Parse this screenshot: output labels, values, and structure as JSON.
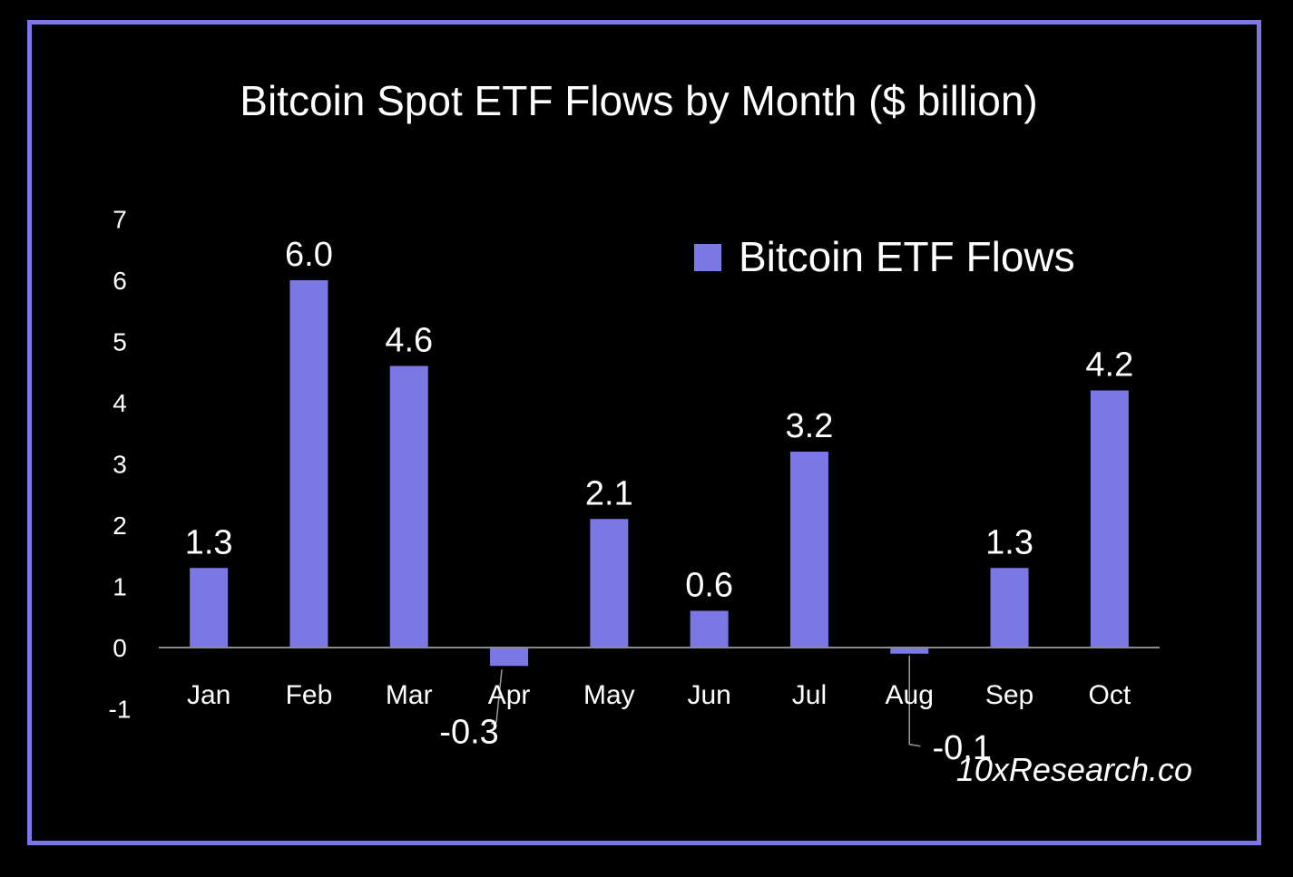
{
  "chart_data": {
    "type": "bar",
    "title": "Bitcoin Spot ETF Flows by Month ($ billion)",
    "xlabel": "",
    "ylabel": "",
    "categories": [
      "Jan",
      "Feb",
      "Mar",
      "Apr",
      "May",
      "Jun",
      "Jul",
      "Aug",
      "Sep",
      "Oct"
    ],
    "series": [
      {
        "name": "Bitcoin ETF Flows",
        "values": [
          1.3,
          6.0,
          4.6,
          -0.3,
          2.1,
          0.6,
          3.2,
          -0.1,
          1.3,
          4.2
        ],
        "data_labels": [
          "1.3",
          "6.0",
          "4.6",
          "-0.3",
          "2.1",
          "0.6",
          "3.2",
          "-0.1",
          "1.3",
          "4.2"
        ]
      }
    ],
    "ylim": [
      -1,
      7
    ],
    "y_ticks": [
      "-1",
      "0",
      "1",
      "2",
      "3",
      "4",
      "5",
      "6",
      "7"
    ],
    "grid": false,
    "legend": "top-right",
    "colors": {
      "bar": "#7b78e6",
      "frame": "#7b78e6",
      "background": "#000000",
      "text": "#ffffff",
      "axis": "#8a8a8a"
    }
  },
  "watermark": "10xResearch.co"
}
